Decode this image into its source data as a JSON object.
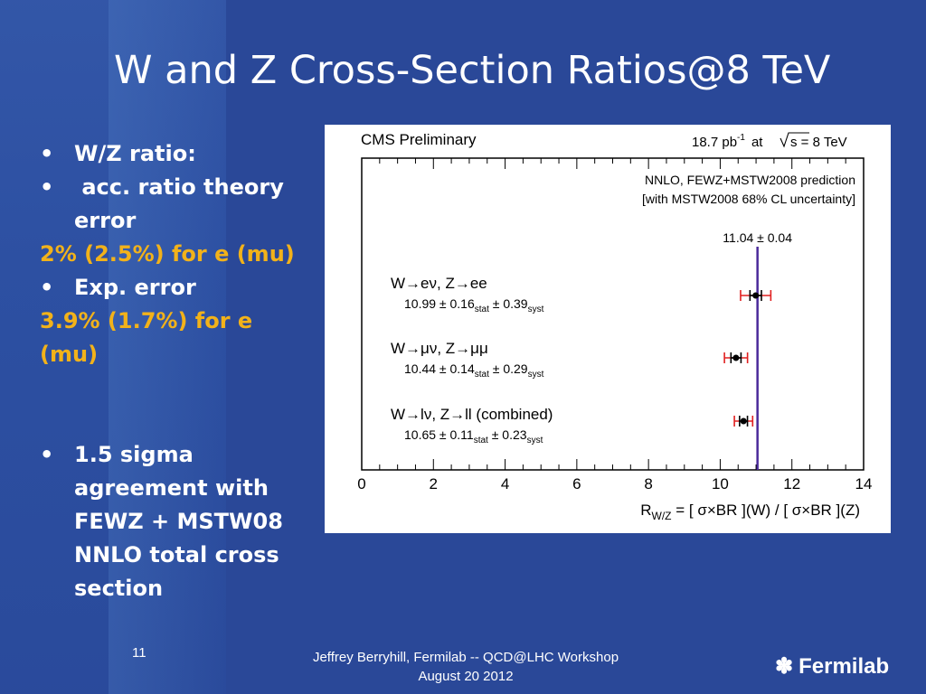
{
  "slide": {
    "title": "W and Z Cross-Section Ratios@8 TeV",
    "bullets": [
      {
        "bullet": "•",
        "text": "W/Z ratio:"
      },
      {
        "bullet": "•",
        "text": " acc. ratio theory error"
      },
      {
        "plain": "2% (2.5%) for e (mu)"
      },
      {
        "bullet": "•",
        "text": "Exp. error"
      },
      {
        "plain": "3.9% (1.7%) for e (mu)"
      },
      {
        "bullet": "•",
        "text": "1.5 sigma agreement with FEWZ + MSTW08 NNLO total cross section"
      }
    ],
    "page_number": "11",
    "footer_line1": "Jeffrey Berryhill, Fermilab -- QCD@LHC Workshop",
    "footer_line2": "August 20 2012",
    "logo_mark": "✽",
    "logo_text": "Fermilab",
    "colors": {
      "background": "#2a4898",
      "highlight": "#f2b21a"
    }
  },
  "chart_data": {
    "type": "scatter",
    "header_left": "CMS Preliminary",
    "lumi_value": "18.7 pb",
    "lumi_exp": "-1",
    "lumi_at": "at",
    "sqrt_s": "s = 8 TeV",
    "prediction_label_1": "NNLO, FEWZ+MSTW2008 prediction",
    "prediction_label_2": "[with MSTW2008 68% CL uncertainty]",
    "prediction_value": "11.04 ± 0.04",
    "prediction": 11.04,
    "xlim": [
      0,
      14
    ],
    "xticks": [
      0,
      2,
      4,
      6,
      8,
      10,
      12,
      14
    ],
    "xlabel_main": "R",
    "xlabel_sub": "W/Z",
    "xlabel_rest": " = [ σ×BR ](W) / [ σ×BR ](Z)",
    "colors": {
      "prediction": "#4a2a9a",
      "stat": "#000000",
      "total": "#e02020"
    },
    "measurements": [
      {
        "label": "W→eν, Z→ee",
        "value_text": "10.99 ± 0.16",
        "stat_sub": "stat",
        "syst_text": " ± 0.39",
        "syst_sub": "syst",
        "value": 10.99,
        "stat": 0.16,
        "syst": 0.39
      },
      {
        "label": "W→μν, Z→μμ",
        "value_text": "10.44 ± 0.14",
        "stat_sub": "stat",
        "syst_text": " ± 0.29",
        "syst_sub": "syst",
        "value": 10.44,
        "stat": 0.14,
        "syst": 0.29
      },
      {
        "label": "W→lν, Z→ll (combined)",
        "value_text": "10.65 ± 0.11",
        "stat_sub": "stat",
        "syst_text": " ± 0.23",
        "syst_sub": "syst",
        "value": 10.65,
        "stat": 0.11,
        "syst": 0.23
      }
    ]
  }
}
